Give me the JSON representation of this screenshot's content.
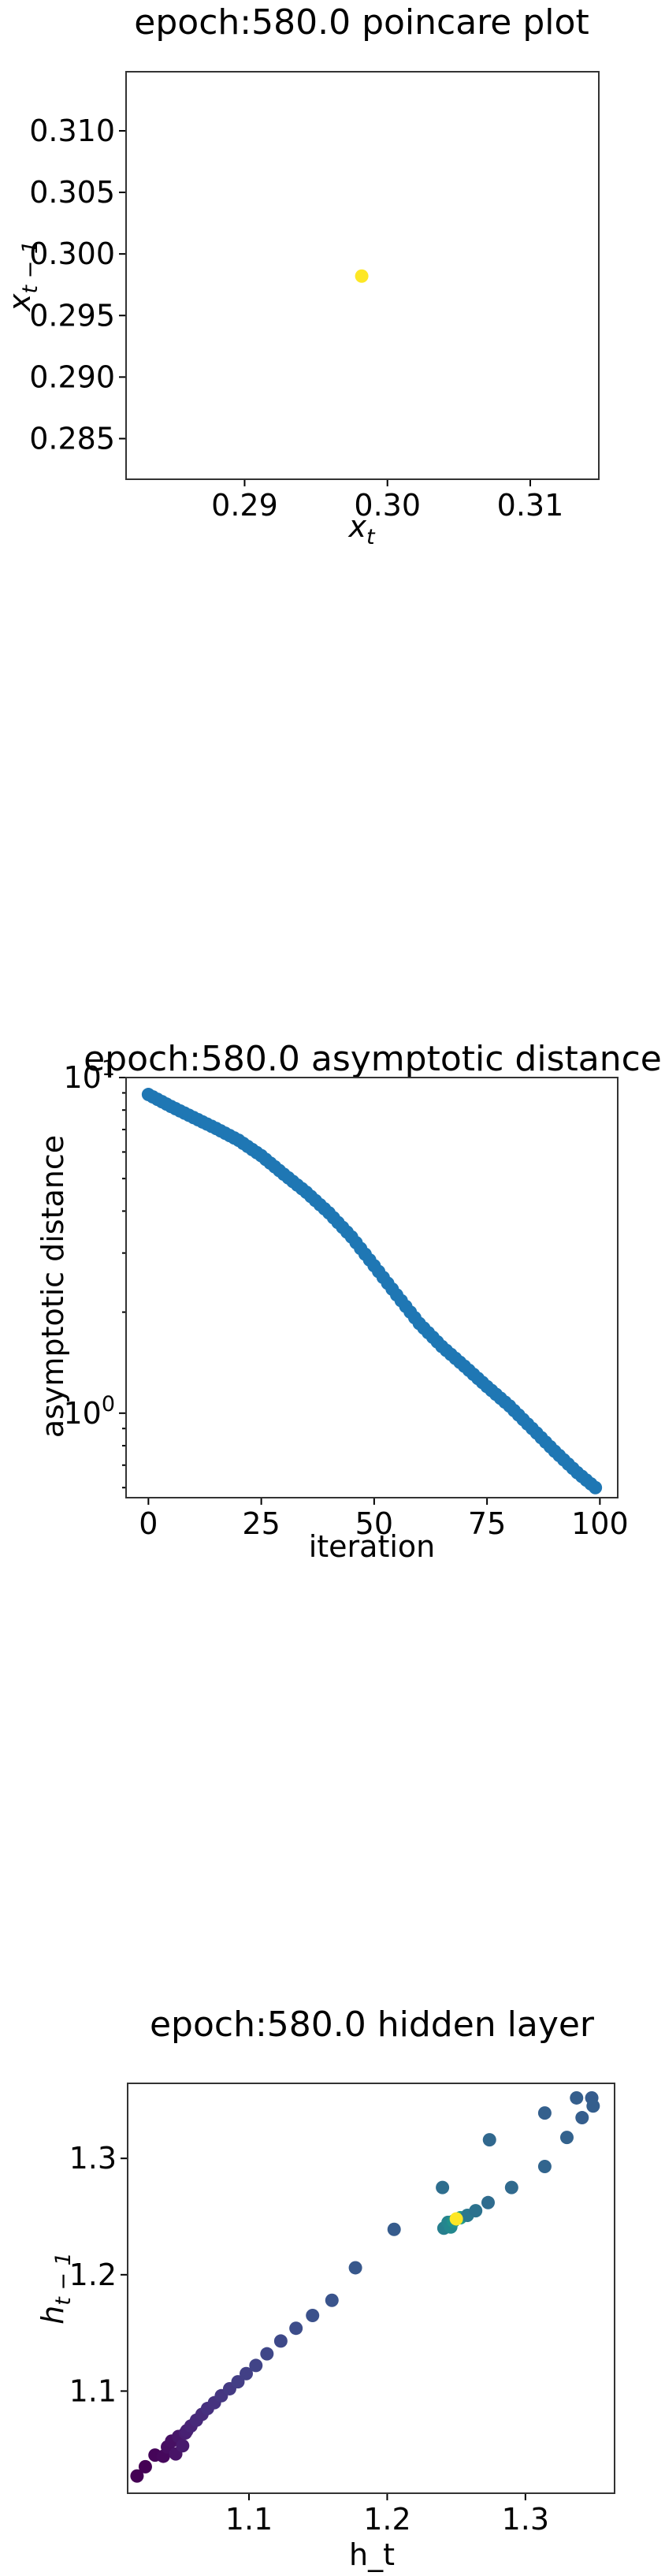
{
  "chart_data": [
    {
      "type": "scatter",
      "title": "epoch:580.0 poincare plot",
      "xlabel_base": "x",
      "xlabel_sub": "t",
      "ylabel_base": "x",
      "ylabel_sub": "t − 1",
      "xlim": [
        0.2817,
        0.3148
      ],
      "ylim": [
        0.2817,
        0.3148
      ],
      "xticks": [
        0.29,
        0.3,
        0.31
      ],
      "xtick_labels": [
        "0.29",
        "0.30",
        "0.31"
      ],
      "yticks": [
        0.285,
        0.29,
        0.295,
        0.3,
        0.305,
        0.31
      ],
      "ytick_labels": [
        "0.285",
        "0.290",
        "0.295",
        "0.300",
        "0.305",
        "0.310"
      ],
      "points": [
        {
          "x": 0.2982,
          "y": 0.2982,
          "color": "#fde725"
        }
      ]
    },
    {
      "type": "scatter",
      "title": "epoch:580.0 asymptotic distance",
      "xlabel": "iteration",
      "ylabel": "asymptotic distance",
      "yscale": "log",
      "xlim": [
        -4.95,
        103.95
      ],
      "ylim": [
        0.56,
        10
      ],
      "xticks": [
        0,
        25,
        50,
        75,
        100
      ],
      "xtick_labels": [
        "0",
        "25",
        "50",
        "75",
        "100"
      ],
      "yticks_major": [
        1,
        10
      ],
      "ytick_major_labels": [
        {
          "base": "10",
          "exp": "0"
        },
        {
          "base": "10",
          "exp": "1"
        }
      ],
      "yticks_minor": [
        0.6,
        0.7,
        0.8,
        0.9,
        2,
        3,
        4,
        5,
        6,
        7,
        8,
        9
      ],
      "point_color": "#1f77b4",
      "anchors": [
        [
          0,
          8.9
        ],
        [
          5,
          8.2
        ],
        [
          10,
          7.6
        ],
        [
          15,
          7.05
        ],
        [
          20,
          6.5
        ],
        [
          25,
          5.85
        ],
        [
          30,
          5.15
        ],
        [
          35,
          4.55
        ],
        [
          40,
          3.95
        ],
        [
          45,
          3.35
        ],
        [
          50,
          2.75
        ],
        [
          55,
          2.25
        ],
        [
          60,
          1.85
        ],
        [
          65,
          1.58
        ],
        [
          70,
          1.38
        ],
        [
          75,
          1.2
        ],
        [
          80,
          1.05
        ],
        [
          85,
          0.9
        ],
        [
          90,
          0.77
        ],
        [
          95,
          0.665
        ],
        [
          99,
          0.6
        ]
      ]
    },
    {
      "type": "scatter",
      "title": "epoch:580.0 hidden layer",
      "xlabel": "h_t",
      "ylabel_base": "h",
      "ylabel_sub": "t − 1",
      "xlim": [
        1.0122,
        1.3645
      ],
      "ylim": [
        1.0122,
        1.3645
      ],
      "xticks": [
        1.1,
        1.2,
        1.3
      ],
      "xtick_labels": [
        "1.1",
        "1.2",
        "1.3"
      ],
      "yticks": [
        1.1,
        1.2,
        1.3
      ],
      "ytick_labels": [
        "1.1",
        "1.2",
        "1.3"
      ],
      "points": [
        {
          "x": 1.019,
          "y": 1.027,
          "color": "#440154"
        },
        {
          "x": 1.025,
          "y": 1.035,
          "color": "#440154"
        },
        {
          "x": 1.032,
          "y": 1.045,
          "color": "#450559"
        },
        {
          "x": 1.038,
          "y": 1.044,
          "color": "#46085c"
        },
        {
          "x": 1.041,
          "y": 1.052,
          "color": "#470e61"
        },
        {
          "x": 1.044,
          "y": 1.057,
          "color": "#471063"
        },
        {
          "x": 1.047,
          "y": 1.046,
          "color": "#481467"
        },
        {
          "x": 1.049,
          "y": 1.061,
          "color": "#481769"
        },
        {
          "x": 1.052,
          "y": 1.053,
          "color": "#481b6d"
        },
        {
          "x": 1.054,
          "y": 1.064,
          "color": "#481f70"
        },
        {
          "x": 1.055,
          "y": 1.066,
          "color": "#482173"
        },
        {
          "x": 1.058,
          "y": 1.07,
          "color": "#482576"
        },
        {
          "x": 1.062,
          "y": 1.075,
          "color": "#472a7a"
        },
        {
          "x": 1.066,
          "y": 1.08,
          "color": "#472c7a"
        },
        {
          "x": 1.07,
          "y": 1.085,
          "color": "#46307e"
        },
        {
          "x": 1.075,
          "y": 1.09,
          "color": "#46337f"
        },
        {
          "x": 1.08,
          "y": 1.096,
          "color": "#453781"
        },
        {
          "x": 1.086,
          "y": 1.102,
          "color": "#443a83"
        },
        {
          "x": 1.092,
          "y": 1.108,
          "color": "#433e85"
        },
        {
          "x": 1.098,
          "y": 1.115,
          "color": "#424086"
        },
        {
          "x": 1.105,
          "y": 1.122,
          "color": "#414487"
        },
        {
          "x": 1.113,
          "y": 1.132,
          "color": "#3f4788"
        },
        {
          "x": 1.123,
          "y": 1.143,
          "color": "#3e4989"
        },
        {
          "x": 1.134,
          "y": 1.154,
          "color": "#3d4d8a"
        },
        {
          "x": 1.146,
          "y": 1.165,
          "color": "#3b518b"
        },
        {
          "x": 1.16,
          "y": 1.178,
          "color": "#3a548c"
        },
        {
          "x": 1.177,
          "y": 1.206,
          "color": "#38588c"
        },
        {
          "x": 1.205,
          "y": 1.239,
          "color": "#365c8d"
        },
        {
          "x": 1.24,
          "y": 1.275,
          "color": "#2e6e8e"
        },
        {
          "x": 1.241,
          "y": 1.24,
          "color": "#277f8e"
        },
        {
          "x": 1.244,
          "y": 1.245,
          "color": "#25858e"
        },
        {
          "x": 1.246,
          "y": 1.241,
          "color": "#23888e"
        },
        {
          "x": 1.248,
          "y": 1.246,
          "color": "#21918c"
        },
        {
          "x": 1.253,
          "y": 1.249,
          "color": "#1f9a8a"
        },
        {
          "x": 1.258,
          "y": 1.251,
          "color": "#2a788e"
        },
        {
          "x": 1.264,
          "y": 1.255,
          "color": "#2c728e"
        },
        {
          "x": 1.273,
          "y": 1.262,
          "color": "#2f6c8e"
        },
        {
          "x": 1.274,
          "y": 1.316,
          "color": "#31688e"
        },
        {
          "x": 1.29,
          "y": 1.275,
          "color": "#306a8e"
        },
        {
          "x": 1.314,
          "y": 1.293,
          "color": "#32658e"
        },
        {
          "x": 1.314,
          "y": 1.339,
          "color": "#34608d"
        },
        {
          "x": 1.33,
          "y": 1.318,
          "color": "#33628d"
        },
        {
          "x": 1.337,
          "y": 1.352,
          "color": "#355f8d"
        },
        {
          "x": 1.341,
          "y": 1.335,
          "color": "#355e8d"
        },
        {
          "x": 1.348,
          "y": 1.352,
          "color": "#365c8d"
        },
        {
          "x": 1.349,
          "y": 1.345,
          "color": "#355f8d"
        },
        {
          "x": 1.25,
          "y": 1.248,
          "color": "#fde725"
        }
      ]
    }
  ]
}
